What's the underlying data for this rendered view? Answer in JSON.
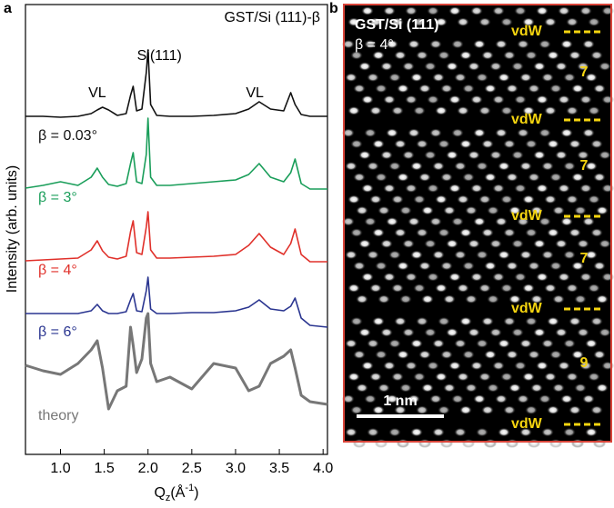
{
  "chart_data": {
    "type": "line",
    "title": "GST/Si (111)-β",
    "panel_label": "a",
    "y_label": "Intensity (arb. units)",
    "x_label": {
      "main": "Q",
      "sub": "z",
      "open": "(Å",
      "sup": "-1",
      "close": ")"
    },
    "annotations": [
      "VL",
      "Si(111)",
      "VL"
    ],
    "xlim": [
      0.6,
      4.05
    ],
    "ylim": [
      0,
      495
    ],
    "xticks": [
      {
        "value": 1,
        "label": "1.0"
      },
      1.5,
      {
        "value": 2,
        "label": "2.0"
      },
      2.5,
      {
        "value": 3,
        "label": "3.0"
      },
      3.5,
      {
        "value": 4,
        "label": "4.0"
      }
    ],
    "x": [
      0.6,
      0.8,
      1.0,
      1.2,
      1.35,
      1.42,
      1.48,
      1.55,
      1.65,
      1.75,
      1.8,
      1.83,
      1.87,
      1.93,
      1.98,
      2.0,
      2.03,
      2.1,
      2.25,
      2.5,
      2.75,
      3.0,
      3.15,
      3.27,
      3.4,
      3.55,
      3.63,
      3.68,
      3.75,
      3.85,
      4.05
    ],
    "series": [
      {
        "name": "β = 0.03°",
        "color": "#111111",
        "values": [
          372,
          372,
          371,
          372,
          375,
          379,
          382,
          379,
          373,
          375,
          395,
          405,
          378,
          380,
          420,
          445,
          385,
          373,
          372,
          372,
          373,
          375,
          380,
          388,
          380,
          378,
          398,
          385,
          374,
          372,
          372
        ]
      },
      {
        "name": "β = 3°",
        "color": "#1a9e5a",
        "values": [
          293,
          296,
          300,
          296,
          305,
          315,
          305,
          297,
          295,
          298,
          320,
          332,
          300,
          298,
          330,
          370,
          305,
          296,
          296,
          298,
          300,
          302,
          308,
          320,
          305,
          300,
          310,
          325,
          298,
          292,
          292
        ]
      },
      {
        "name": "β = 4°",
        "color": "#e0302a",
        "values": [
          213,
          214,
          215,
          216,
          225,
          235,
          224,
          217,
          215,
          218,
          245,
          257,
          222,
          220,
          250,
          267,
          225,
          216,
          216,
          217,
          218,
          220,
          230,
          243,
          228,
          220,
          232,
          248,
          220,
          212,
          212
        ]
      },
      {
        "name": "β = 6°",
        "color": "#2a3590",
        "values": [
          155,
          155,
          155,
          155,
          158,
          165,
          158,
          155,
          155,
          157,
          170,
          177,
          158,
          157,
          180,
          195,
          160,
          155,
          155,
          156,
          156,
          158,
          162,
          170,
          160,
          158,
          163,
          172,
          150,
          142,
          140
        ]
      },
      {
        "name": "theory",
        "color": "#777777",
        "values": [
          98,
          92,
          88,
          100,
          115,
          125,
          95,
          50,
          70,
          75,
          140,
          120,
          90,
          105,
          150,
          155,
          100,
          80,
          85,
          72,
          100,
          95,
          70,
          75,
          100,
          108,
          115,
          95,
          65,
          58,
          55
        ]
      }
    ]
  },
  "panel_b": {
    "panel_label": "b",
    "title": "GST/Si (111)",
    "angle": "β = 4°",
    "gap_label": "vdW",
    "layers": [
      "7",
      "7",
      "7",
      "9"
    ],
    "scale_bar": "1 nm"
  }
}
